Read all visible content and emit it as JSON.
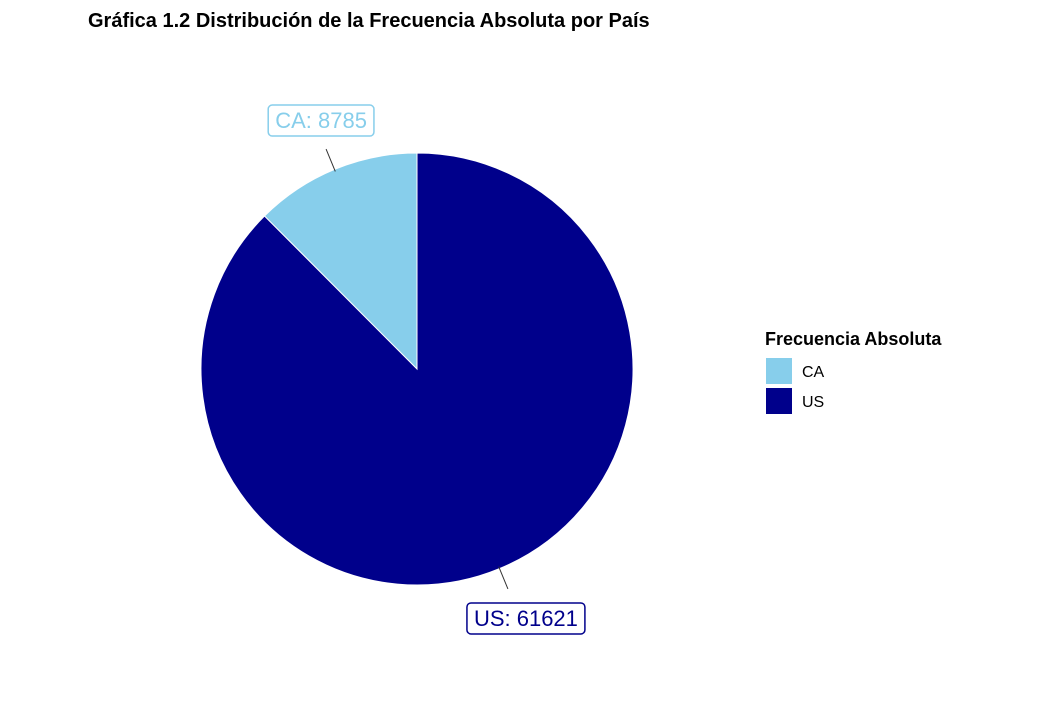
{
  "chart_data": {
    "type": "pie",
    "title": "Gráfica 1.2 Distribución de la Frecuencia Absoluta por País",
    "legend": {
      "title": "Frecuencia Absoluta",
      "placement": "right"
    },
    "categories": [
      "CA",
      "US"
    ],
    "values": [
      8785,
      61621
    ],
    "colors": [
      "#87CEEB",
      "#00008B"
    ],
    "labels": [
      "CA: 8785",
      "US: 61621"
    ],
    "start_angle": "12 o'clock",
    "direction": "counterclockwise"
  }
}
